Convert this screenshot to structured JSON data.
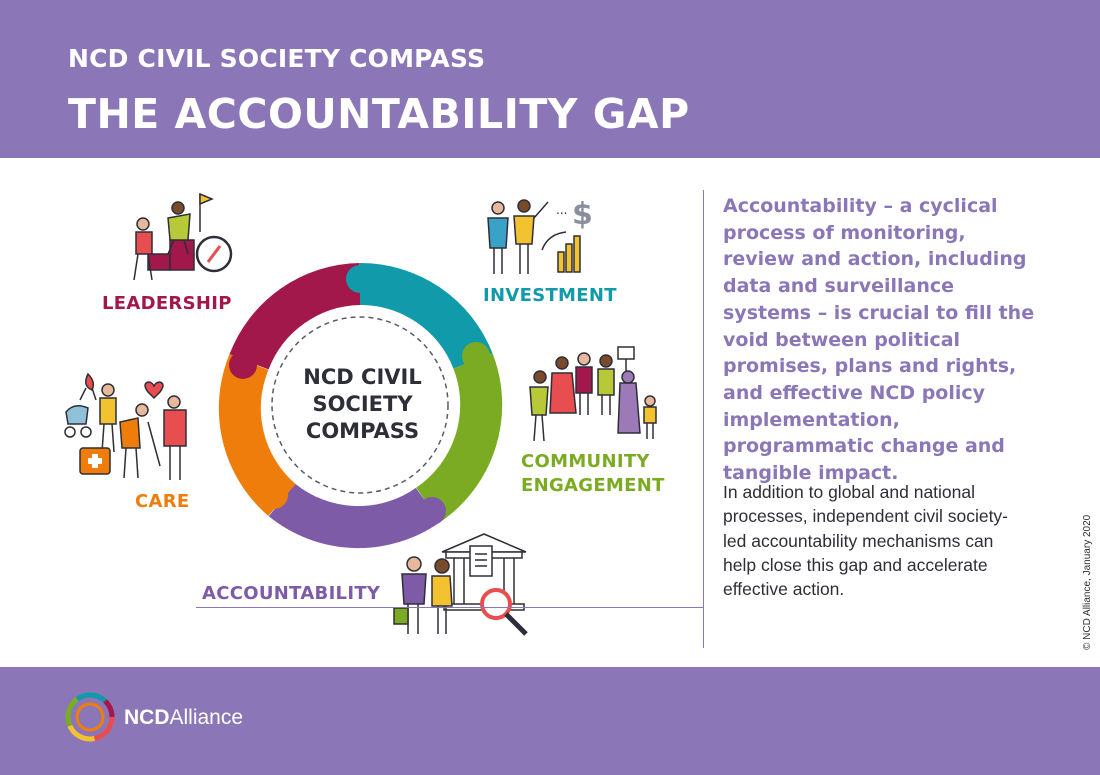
{
  "header": {
    "eyebrow": "NCD CIVIL SOCIETY COMPASS",
    "title": "THE ACCOUNTABILITY GAP"
  },
  "compass": {
    "center_text": "NCD CIVIL\nSOCIETY\nCOMPASS",
    "segments": [
      {
        "label": "LEADERSHIP",
        "color": "#a3184b",
        "icon": "leadership-climbing-people-icon"
      },
      {
        "label": "INVESTMENT",
        "color": "#119aa9",
        "icon": "investment-people-dollar-icon"
      },
      {
        "label": "COMMUNITY\nENGAGEMENT",
        "color": "#7bab22",
        "icon": "community-group-icon"
      },
      {
        "label": "ACCOUNTABILITY",
        "color": "#7e5ba6",
        "icon": "accountability-building-icon"
      },
      {
        "label": "CARE",
        "color": "#ef7d0b",
        "icon": "care-people-icon"
      }
    ]
  },
  "text": {
    "lead": "Accountability – a cyclical process of monitoring, review and action, including data and surveillance systems – is crucial to fill the void between political promises, plans and rights, and effective NCD policy implementation, programmatic change and tangible impact.",
    "body": "In addition to global and national processes, independent civil society-led accountability mechanisms can help close this gap and accelerate effective action.",
    "copyright": "© NCD Alliance, January 2020"
  },
  "footer": {
    "brand_bold": "NCD",
    "brand_regular": "Alliance"
  },
  "colors": {
    "brand_purple": "#8b77b7",
    "dark_text": "#2e2e38"
  }
}
